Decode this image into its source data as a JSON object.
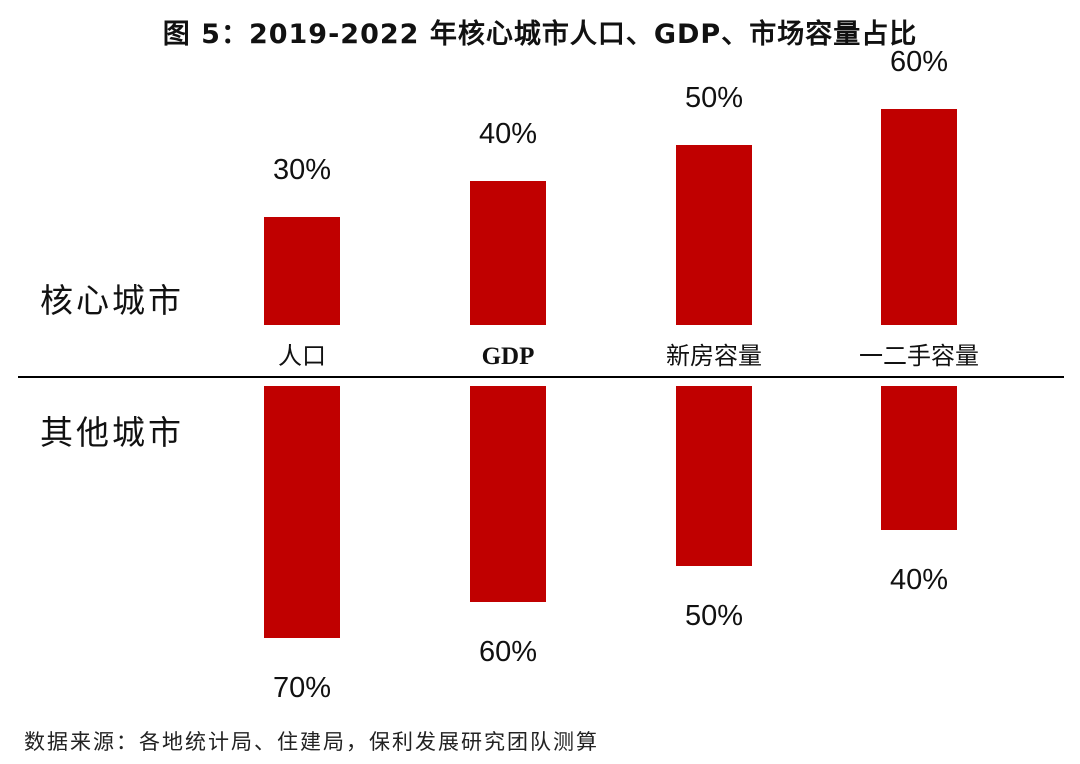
{
  "chart_data": {
    "type": "bar",
    "title": "图 5：2019-2022 年核心城市人口、GDP、市场容量占比",
    "categories": [
      "人口",
      "GDP",
      "新房容量",
      "一二手容量"
    ],
    "series": [
      {
        "name": "核心城市",
        "values": [
          30,
          40,
          50,
          60
        ]
      },
      {
        "name": "其他城市",
        "values": [
          70,
          60,
          50,
          40
        ]
      }
    ],
    "unit": "%",
    "ylim": [
      0,
      100
    ],
    "grid": false,
    "legend": "none",
    "colors": {
      "bar": "#C00000",
      "axis": "#000000"
    }
  },
  "source": "数据来源：各地统计局、住建局，保利发展研究团队测算"
}
